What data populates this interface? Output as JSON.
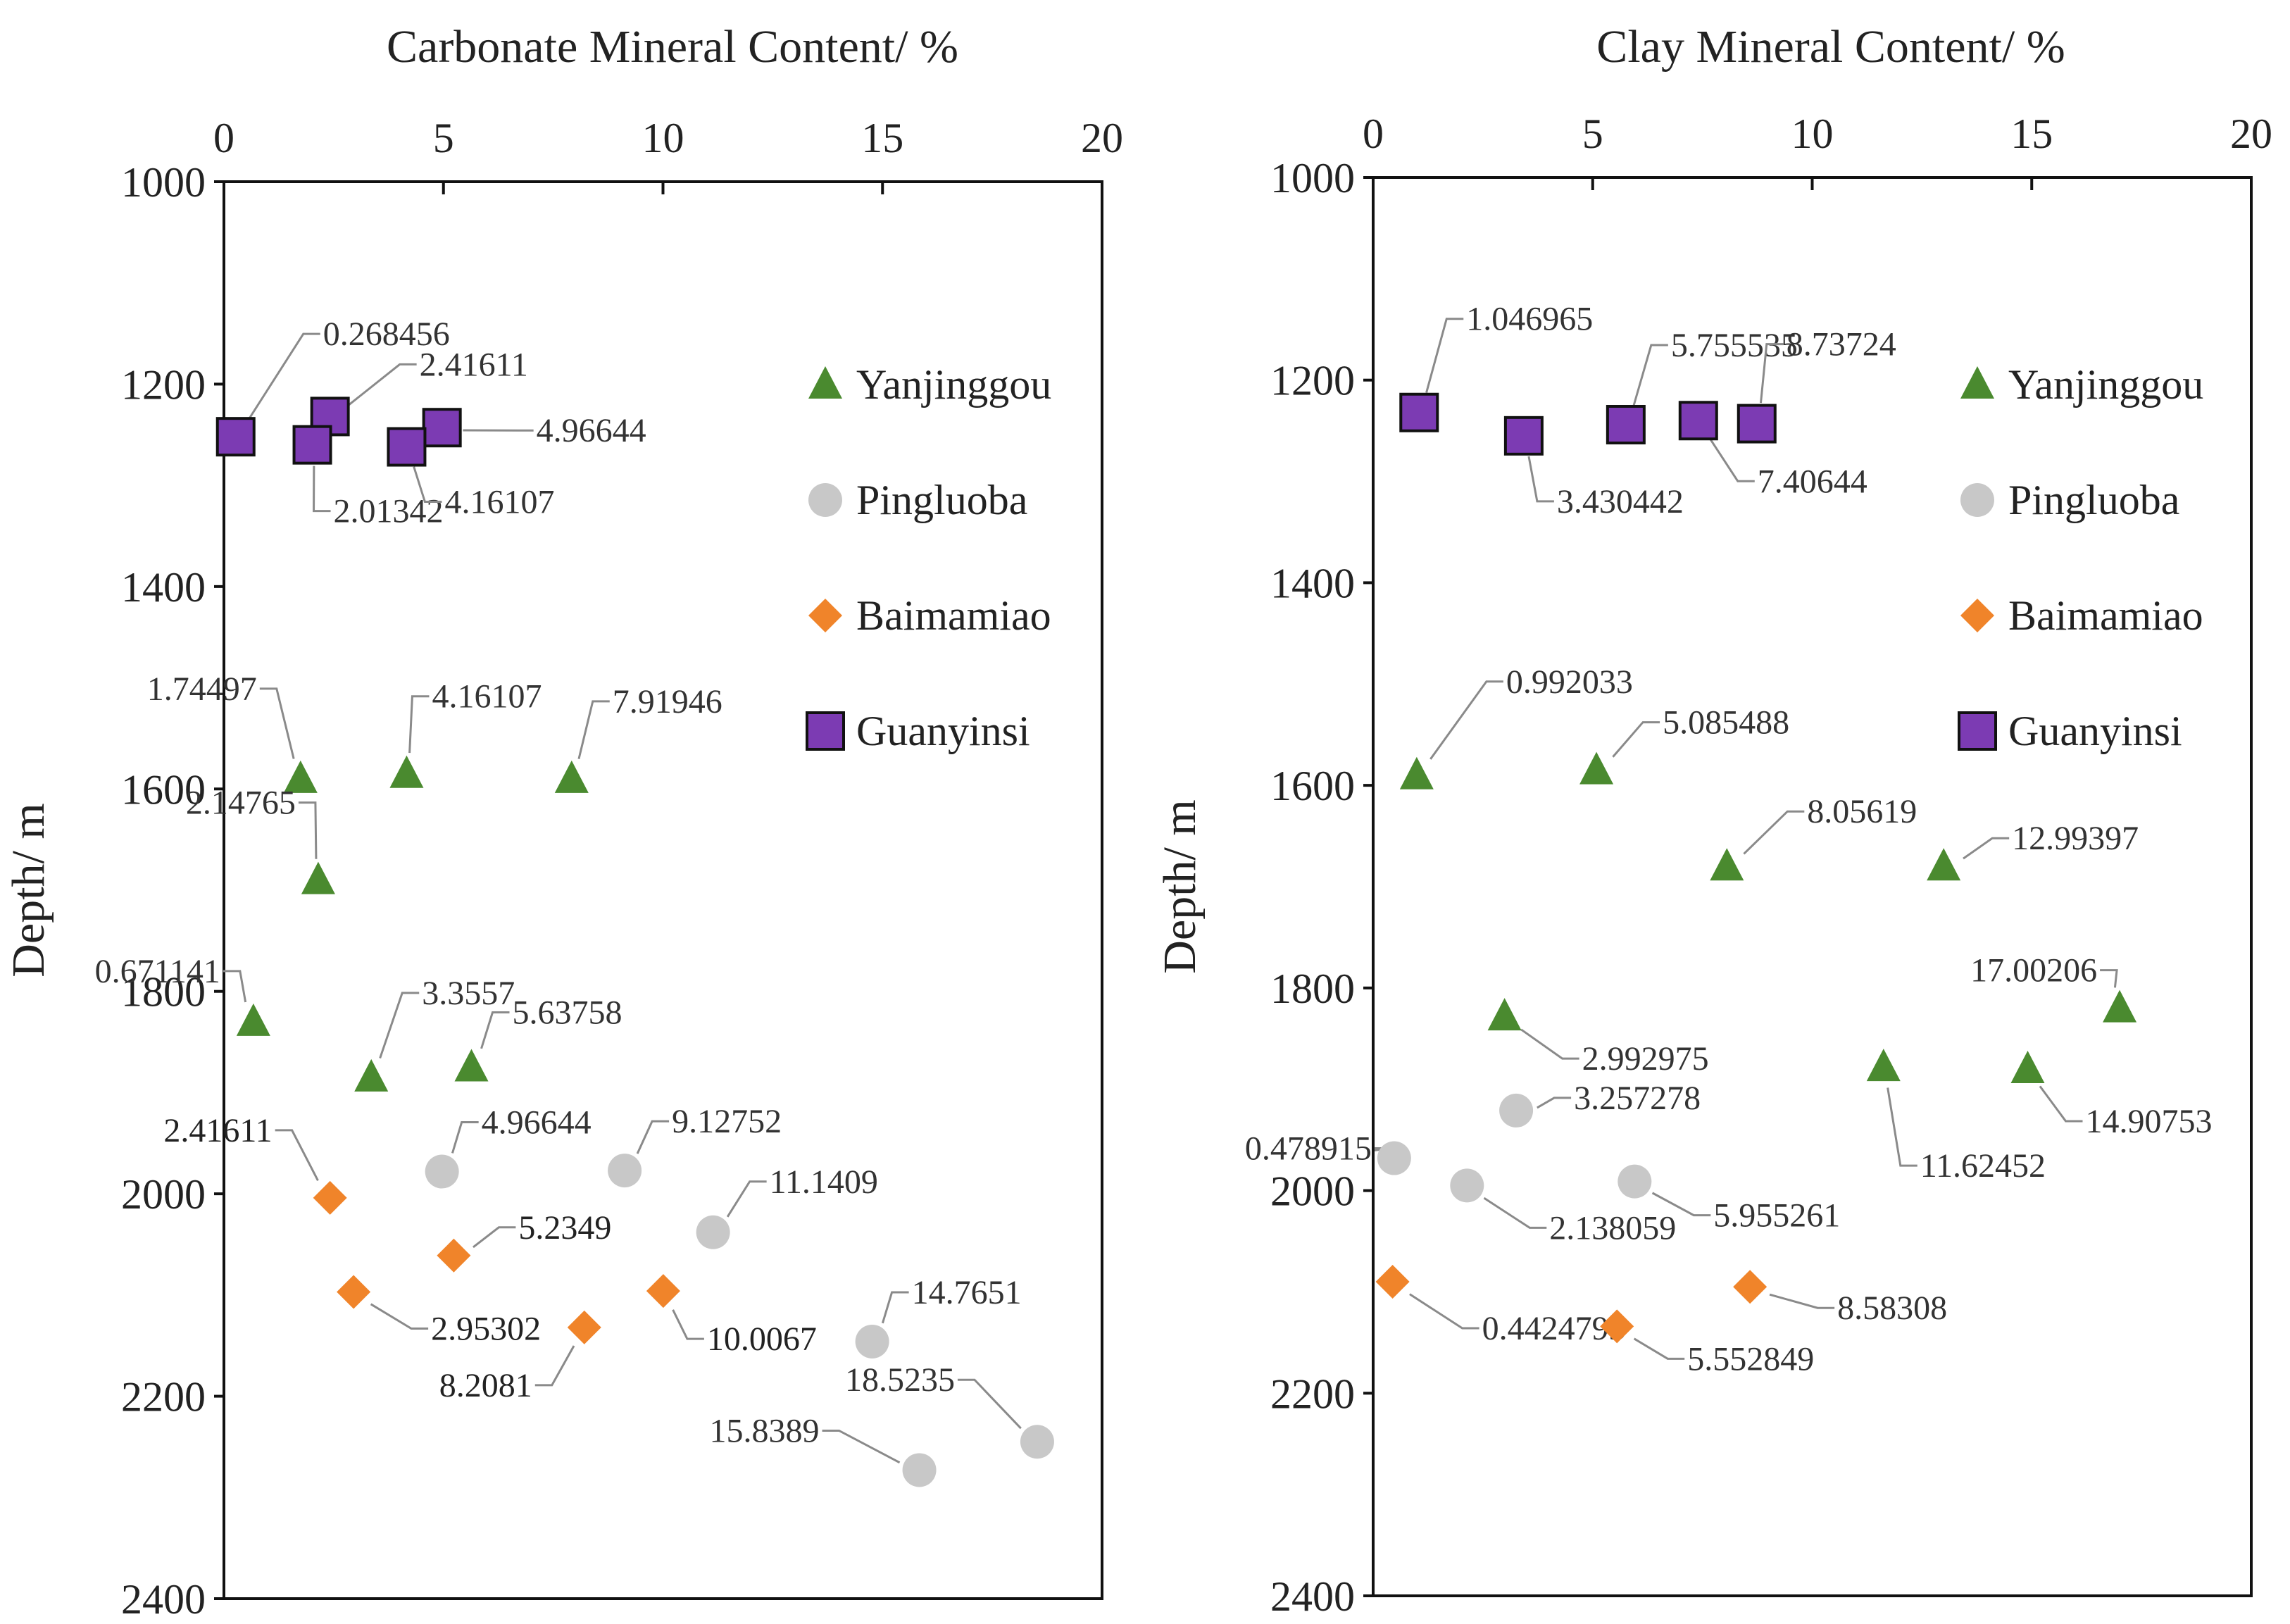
{
  "colors": {
    "Yanjinggou": "#4a8a2f",
    "Pingluoba": "#c8c8c8",
    "Baimamiao": "#f0842a",
    "Guanyinsi": "#7c3bb3"
  },
  "chart_data": [
    {
      "type": "scatter",
      "title": "Carbonate Mineral Content/ %",
      "xlabel": "Carbonate Mineral Content/ %",
      "ylabel": "Depth/ m",
      "xlim": [
        0,
        20
      ],
      "ylim": [
        1000,
        2400
      ],
      "y_inverted": true,
      "x_ticks": [
        "0",
        "5",
        "10",
        "15",
        "20"
      ],
      "y_ticks": [
        "1000",
        "1200",
        "1400",
        "1600",
        "1800",
        "2000",
        "2200",
        "2400"
      ],
      "legend": [
        "Yanjinggou",
        "Pingluoba",
        "Baimamiao",
        "Guanyinsi"
      ],
      "legend_position": "top-right",
      "series": [
        {
          "name": "Yanjinggou",
          "marker": "triangle",
          "points": [
            {
              "x": 1.74497,
              "y": 1590,
              "label": "1.74497"
            },
            {
              "x": 4.16107,
              "y": 1585,
              "label": "4.16107"
            },
            {
              "x": 7.91946,
              "y": 1590,
              "label": "7.91946"
            },
            {
              "x": 2.14765,
              "y": 1690,
              "label": "2.14765"
            },
            {
              "x": 0.671141,
              "y": 1830,
              "label": "0.671141"
            },
            {
              "x": 3.3557,
              "y": 1885,
              "label": "3.3557"
            },
            {
              "x": 5.63758,
              "y": 1875,
              "label": "5.63758"
            }
          ]
        },
        {
          "name": "Pingluoba",
          "marker": "circle",
          "points": [
            {
              "x": 4.96644,
              "y": 1978,
              "label": "4.96644"
            },
            {
              "x": 9.12752,
              "y": 1977,
              "label": "9.12752"
            },
            {
              "x": 11.1409,
              "y": 2038,
              "label": "11.1409"
            },
            {
              "x": 14.7651,
              "y": 2146,
              "label": "14.7651"
            },
            {
              "x": 18.5235,
              "y": 2245,
              "label": "18.5235"
            },
            {
              "x": 15.8389,
              "y": 2273,
              "label": "15.8389"
            }
          ]
        },
        {
          "name": "Baimamiao",
          "marker": "diamond",
          "points": [
            {
              "x": 2.41611,
              "y": 2004,
              "label": "2.41611"
            },
            {
              "x": 5.2349,
              "y": 2061,
              "label": "5.2349"
            },
            {
              "x": 2.95302,
              "y": 2097,
              "label": "2.95302"
            },
            {
              "x": 10.0067,
              "y": 2096,
              "label": "10.0067"
            },
            {
              "x": 8.2081,
              "y": 2132,
              "label": "8.2081"
            }
          ]
        },
        {
          "name": "Guanyinsi",
          "marker": "square",
          "points": [
            {
              "x": 0.268456,
              "y": 1252,
              "label": "0.268456"
            },
            {
              "x": 2.41611,
              "y": 1232,
              "label": "2.41611"
            },
            {
              "x": 4.96644,
              "y": 1243,
              "label": "4.96644"
            },
            {
              "x": 2.01342,
              "y": 1260,
              "label": "2.01342"
            },
            {
              "x": 4.16107,
              "y": 1262,
              "label": "4.16107"
            }
          ]
        }
      ]
    },
    {
      "type": "scatter",
      "title": "Clay Mineral Content/ %",
      "xlabel": "Clay Mineral Content/ %",
      "ylabel": "Depth/ m",
      "xlim": [
        0,
        20
      ],
      "ylim": [
        1000,
        2400
      ],
      "y_inverted": true,
      "x_ticks": [
        "0",
        "5",
        "10",
        "15",
        "20"
      ],
      "y_ticks": [
        "1000",
        "1200",
        "1400",
        "1600",
        "1800",
        "2000",
        "2200",
        "2400"
      ],
      "legend": [
        "Yanjinggou",
        "Pingluoba",
        "Baimamiao",
        "Guanyinsi"
      ],
      "legend_position": "top-right",
      "series": [
        {
          "name": "Guanyinsi",
          "marker": "square",
          "points": [
            {
              "x": 1.046965,
              "y": 1232,
              "label": "1.046965"
            },
            {
              "x": 3.430442,
              "y": 1255,
              "label": "3.430442"
            },
            {
              "x": 5.755535,
              "y": 1244,
              "label": "5.755535"
            },
            {
              "x": 7.40644,
              "y": 1240,
              "label": "7.40644"
            },
            {
              "x": 8.73724,
              "y": 1243,
              "label": "8.73724"
            }
          ]
        },
        {
          "name": "Yanjinggou",
          "marker": "triangle",
          "points": [
            {
              "x": 0.992033,
              "y": 1590,
              "label": "0.992033"
            },
            {
              "x": 5.085488,
              "y": 1585,
              "label": "5.085488"
            },
            {
              "x": 8.05619,
              "y": 1680,
              "label": "8.05619"
            },
            {
              "x": 12.99397,
              "y": 1680,
              "label": "12.99397"
            },
            {
              "x": 17.00206,
              "y": 1820,
              "label": "17.00206"
            },
            {
              "x": 2.992975,
              "y": 1828,
              "label": "2.992975"
            },
            {
              "x": 11.62452,
              "y": 1878,
              "label": "11.62452"
            },
            {
              "x": 14.90753,
              "y": 1880,
              "label": "14.90753"
            }
          ]
        },
        {
          "name": "Pingluoba",
          "marker": "circle",
          "points": [
            {
              "x": 3.257278,
              "y": 1921,
              "label": "3.257278"
            },
            {
              "x": 0.478915,
              "y": 1968,
              "label": "0.478915"
            },
            {
              "x": 2.138059,
              "y": 1995,
              "label": "2.138059"
            },
            {
              "x": 5.955261,
              "y": 1991,
              "label": "5.955261"
            }
          ]
        },
        {
          "name": "Baimamiao",
          "marker": "diamond",
          "points": [
            {
              "x": 0.4424793,
              "y": 2090,
              "label": "0.4424793"
            },
            {
              "x": 5.552849,
              "y": 2134,
              "label": "5.552849"
            },
            {
              "x": 8.58308,
              "y": 2095,
              "label": "8.58308"
            }
          ]
        }
      ]
    }
  ]
}
